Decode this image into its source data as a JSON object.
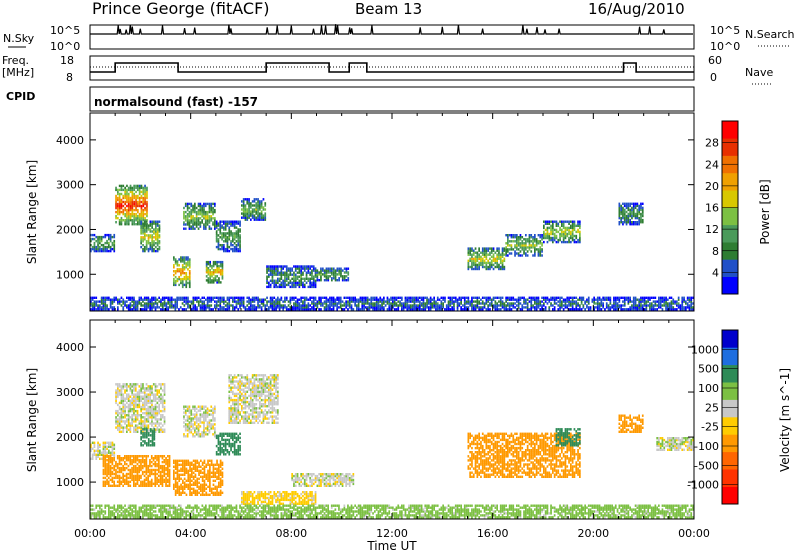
{
  "header": {
    "station": "Prince George (fitACF)",
    "beam": "Beam 13",
    "date": "16/Aug/2010"
  },
  "nsky_panel": {
    "left_label": "N.Sky",
    "left_ticks": [
      "10^5",
      "10^0"
    ],
    "right_label": "N.Search",
    "right_ticks": [
      "10^5",
      "10^0"
    ]
  },
  "freq_panel": {
    "left_label_1": "Freq.",
    "left_label_2": "[MHz]",
    "left_ticks": [
      "18",
      "8"
    ],
    "right_label": "Nave",
    "right_ticks": [
      "60",
      "0"
    ]
  },
  "cpid": {
    "label": "CPID",
    "value": "normalsound (fast) -157"
  },
  "colors": {
    "power_scale": [
      "#0000ff",
      "#2050c8",
      "#2e7d32",
      "#4a9a5a",
      "#7cc043",
      "#d8c800",
      "#f0a000",
      "#f07000",
      "#e83000",
      "#ff0000"
    ],
    "velocity_scale": [
      "#ff0000",
      "#ff3300",
      "#ff6600",
      "#ff9900",
      "#ffcc00",
      "#c8c8c8",
      "#7cc043",
      "#2e8b57",
      "#1e6ee0",
      "#0000cc"
    ]
  },
  "chart_data": [
    {
      "type": "heatmap",
      "title": "",
      "xlabel": "Time UT",
      "ylabel": "Slant Range [km]",
      "x_ticks": [
        "00:00",
        "04:00",
        "08:00",
        "12:00",
        "16:00",
        "20:00",
        "00:00"
      ],
      "y_ticks": [
        "1000",
        "2000",
        "3000",
        "4000"
      ],
      "ylim": [
        180,
        4600
      ],
      "colorbar_label": "Power [dB]",
      "colorbar_ticks": [
        "4",
        "8",
        "12",
        "16",
        "20",
        "24",
        "28"
      ],
      "clim": [
        0,
        30
      ],
      "regions": [
        {
          "t": [
            0.0,
            1.0
          ],
          "r": [
            1500,
            1900
          ],
          "v": 10
        },
        {
          "t": [
            1.0,
            2.3
          ],
          "r": [
            2100,
            3000
          ],
          "v": 22
        },
        {
          "t": [
            2.0,
            2.8
          ],
          "r": [
            1500,
            2200
          ],
          "v": 14
        },
        {
          "t": [
            3.3,
            4.0
          ],
          "r": [
            700,
            1400
          ],
          "v": 18
        },
        {
          "t": [
            3.7,
            5.0
          ],
          "r": [
            2000,
            2600
          ],
          "v": 12
        },
        {
          "t": [
            4.6,
            5.3
          ],
          "r": [
            800,
            1300
          ],
          "v": 16
        },
        {
          "t": [
            5.0,
            6.0
          ],
          "r": [
            1500,
            2200
          ],
          "v": 9
        },
        {
          "t": [
            6.0,
            7.0
          ],
          "r": [
            2200,
            2700
          ],
          "v": 11
        },
        {
          "t": [
            7.0,
            9.0
          ],
          "r": [
            700,
            1200
          ],
          "v": 8
        },
        {
          "t": [
            9.0,
            10.3
          ],
          "r": [
            850,
            1150
          ],
          "v": 10
        },
        {
          "t": [
            15.0,
            16.5
          ],
          "r": [
            1100,
            1600
          ],
          "v": 14
        },
        {
          "t": [
            16.5,
            18.0
          ],
          "r": [
            1400,
            1900
          ],
          "v": 12
        },
        {
          "t": [
            18.0,
            19.5
          ],
          "r": [
            1700,
            2200
          ],
          "v": 13
        },
        {
          "t": [
            21.0,
            22.0
          ],
          "r": [
            2100,
            2600
          ],
          "v": 8
        },
        {
          "t": [
            0.0,
            24.0
          ],
          "r": [
            200,
            500
          ],
          "v": 6
        }
      ]
    },
    {
      "type": "heatmap",
      "title": "",
      "xlabel": "Time UT",
      "ylabel": "Slant Range [km]",
      "x_ticks": [
        "00:00",
        "04:00",
        "08:00",
        "12:00",
        "16:00",
        "20:00",
        "00:00"
      ],
      "y_ticks": [
        "1000",
        "2000",
        "3000",
        "4000"
      ],
      "ylim": [
        180,
        4600
      ],
      "colorbar_label": "Velocity [m s^-1]",
      "colorbar_ticks": [
        "1000",
        "500",
        "100",
        "25",
        "-25",
        "-100",
        "-500",
        "-1000"
      ],
      "regions": [
        {
          "t": [
            0.0,
            1.0
          ],
          "r": [
            1500,
            1900
          ],
          "v": 0
        },
        {
          "t": [
            0.5,
            3.2
          ],
          "r": [
            900,
            1600
          ],
          "v": -150
        },
        {
          "t": [
            1.0,
            3.0
          ],
          "r": [
            2100,
            3200
          ],
          "v": 0
        },
        {
          "t": [
            2.0,
            2.6
          ],
          "r": [
            1800,
            2200
          ],
          "v": 300
        },
        {
          "t": [
            3.3,
            5.3
          ],
          "r": [
            700,
            1500
          ],
          "v": -150
        },
        {
          "t": [
            3.7,
            5.0
          ],
          "r": [
            2000,
            2700
          ],
          "v": 0
        },
        {
          "t": [
            5.0,
            6.0
          ],
          "r": [
            1600,
            2100
          ],
          "v": 200
        },
        {
          "t": [
            5.5,
            7.5
          ],
          "r": [
            2300,
            3400
          ],
          "v": 0
        },
        {
          "t": [
            6.0,
            9.0
          ],
          "r": [
            500,
            800
          ],
          "v": -50
        },
        {
          "t": [
            8.0,
            10.5
          ],
          "r": [
            900,
            1200
          ],
          "v": 0
        },
        {
          "t": [
            15.0,
            19.5
          ],
          "r": [
            1100,
            2100
          ],
          "v": -200
        },
        {
          "t": [
            18.5,
            19.5
          ],
          "r": [
            1800,
            2200
          ],
          "v": 200
        },
        {
          "t": [
            21.0,
            22.0
          ],
          "r": [
            2100,
            2500
          ],
          "v": -200
        },
        {
          "t": [
            22.5,
            24.0
          ],
          "r": [
            1700,
            2000
          ],
          "v": 0
        },
        {
          "t": [
            0.0,
            24.0
          ],
          "r": [
            200,
            500
          ],
          "v": 60
        }
      ]
    }
  ]
}
